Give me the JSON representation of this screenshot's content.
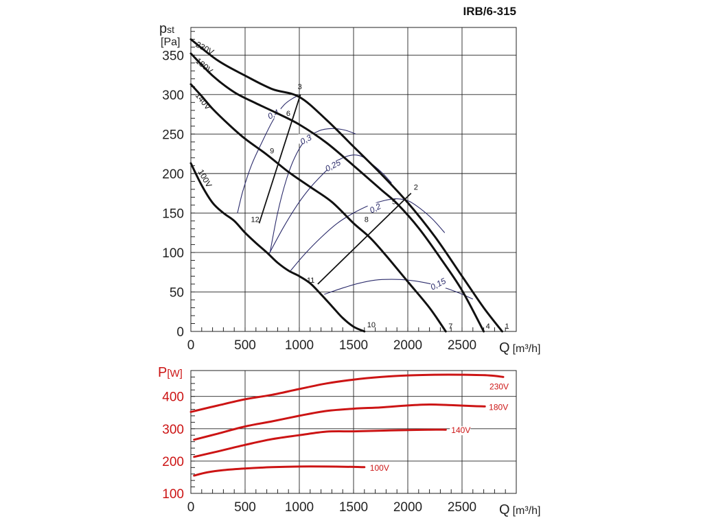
{
  "model": "IRB/6-315",
  "chart_data": [
    {
      "type": "line",
      "title": "IRB/6-315",
      "ylabel_main": "p",
      "ylabel_sub": "st",
      "yunit": "[Pa]",
      "xlabel": "Q",
      "xunit": "[m³/h]",
      "xlim": [
        0,
        3000
      ],
      "ylim": [
        0,
        385
      ],
      "xticks": [
        "0",
        "500",
        "1000",
        "1500",
        "2000",
        "2500"
      ],
      "yticks": [
        "0",
        "50",
        "100",
        "150",
        "200",
        "250",
        "300",
        "350"
      ],
      "x_tick_values": [
        0,
        500,
        1000,
        1500,
        2000,
        2500
      ],
      "y_tick_values": [
        0,
        50,
        100,
        150,
        200,
        250,
        300,
        350
      ],
      "grid": true,
      "series": [
        {
          "name": "230V",
          "points": [
            [
              0,
              370
            ],
            [
              250,
              343
            ],
            [
              500,
              324
            ],
            [
              750,
              307
            ],
            [
              1000,
              297
            ],
            [
              1250,
              268
            ],
            [
              1500,
              234
            ],
            [
              1750,
              200
            ],
            [
              2000,
              163
            ],
            [
              2250,
              120
            ],
            [
              2500,
              70
            ],
            [
              2700,
              30
            ],
            [
              2870,
              0
            ]
          ]
        },
        {
          "name": "180V",
          "points": [
            [
              0,
              352
            ],
            [
              200,
              324
            ],
            [
              400,
              303
            ],
            [
              600,
              289
            ],
            [
              800,
              276
            ],
            [
              1000,
              262
            ],
            [
              1250,
              239
            ],
            [
              1500,
              210
            ],
            [
              1750,
              180
            ],
            [
              1900,
              162
            ],
            [
              2100,
              131
            ],
            [
              2300,
              93
            ],
            [
              2500,
              52
            ],
            [
              2700,
              0
            ]
          ]
        },
        {
          "name": "140V",
          "points": [
            [
              0,
              313
            ],
            [
              100,
              298
            ],
            [
              200,
              282
            ],
            [
              350,
              262
            ],
            [
              500,
              244
            ],
            [
              700,
              224
            ],
            [
              900,
              202
            ],
            [
              1100,
              183
            ],
            [
              1300,
              164
            ],
            [
              1500,
              137
            ],
            [
              1650,
              119
            ],
            [
              1800,
              96
            ],
            [
              2000,
              63
            ],
            [
              2200,
              30
            ],
            [
              2350,
              0
            ]
          ]
        },
        {
          "name": "100V",
          "points": [
            [
              0,
              213
            ],
            [
              100,
              185
            ],
            [
              200,
              163
            ],
            [
              300,
              150
            ],
            [
              400,
              140
            ],
            [
              500,
              125
            ],
            [
              600,
              112
            ],
            [
              700,
              100
            ],
            [
              800,
              87
            ],
            [
              900,
              77
            ],
            [
              1000,
              70
            ],
            [
              1100,
              61
            ],
            [
              1200,
              47
            ],
            [
              1300,
              32
            ],
            [
              1400,
              17
            ],
            [
              1500,
              6
            ],
            [
              1600,
              0
            ]
          ]
        }
      ],
      "point_labels": [
        {
          "label": "1",
          "x": 2870,
          "y": 0
        },
        {
          "label": "2",
          "x": 2030,
          "y": 175
        },
        {
          "label": "3",
          "x": 1010,
          "y": 300
        },
        {
          "label": "4",
          "x": 2700,
          "y": 0
        },
        {
          "label": "5",
          "x": 1880,
          "y": 156
        },
        {
          "label": "6",
          "x": 980,
          "y": 271
        },
        {
          "label": "7",
          "x": 2350,
          "y": 0
        },
        {
          "label": "8",
          "x": 1650,
          "y": 130
        },
        {
          "label": "9",
          "x": 830,
          "y": 224
        },
        {
          "label": "10",
          "x": 1600,
          "y": 0
        },
        {
          "label": "11",
          "x": 1170,
          "y": 60
        },
        {
          "label": "12",
          "x": 630,
          "y": 137
        }
      ],
      "system_lines": [
        [
          [
            630,
            137
          ],
          [
            1010,
            300
          ]
        ],
        [
          [
            1170,
            60
          ],
          [
            2030,
            175
          ]
        ]
      ],
      "efficiency_curves": [
        {
          "name": "0,4",
          "label_at": [
            760,
            275
          ],
          "points": [
            [
              430,
              150
            ],
            [
              480,
              178
            ],
            [
              560,
              211
            ],
            [
              650,
              238
            ],
            [
              760,
              268
            ],
            [
              860,
              287
            ],
            [
              950,
              296
            ],
            [
              1000,
              299
            ]
          ]
        },
        {
          "name": "0,3",
          "label_at": [
            1060,
            243
          ],
          "points": [
            [
              730,
              100
            ],
            [
              800,
              150
            ],
            [
              880,
              192
            ],
            [
              960,
              221
            ],
            [
              1060,
              243
            ],
            [
              1180,
              254
            ],
            [
              1300,
              257
            ],
            [
              1420,
              255
            ],
            [
              1520,
              250
            ]
          ]
        },
        {
          "name": "0,25",
          "label_at": [
            1310,
            210
          ],
          "points": [
            [
              720,
              98
            ],
            [
              850,
              131
            ],
            [
              980,
              160
            ],
            [
              1100,
              182
            ],
            [
              1230,
              201
            ],
            [
              1350,
              216
            ],
            [
              1470,
              223
            ],
            [
              1570,
              222
            ],
            [
              1670,
              212
            ],
            [
              1770,
              200
            ],
            [
              1850,
              188
            ]
          ]
        },
        {
          "name": "0,2",
          "label_at": [
            1700,
            156
          ],
          "points": [
            [
              920,
              77
            ],
            [
              1050,
              98
            ],
            [
              1200,
              119
            ],
            [
              1350,
              137
            ],
            [
              1500,
              150
            ],
            [
              1650,
              160
            ],
            [
              1790,
              166
            ],
            [
              1900,
              168
            ],
            [
              2010,
              165
            ],
            [
              2120,
              155
            ],
            [
              2230,
              142
            ],
            [
              2340,
              125
            ]
          ]
        },
        {
          "name": "0,15",
          "label_at": [
            2280,
            60
          ],
          "points": [
            [
              1230,
              47
            ],
            [
              1400,
              55
            ],
            [
              1550,
              61
            ],
            [
              1700,
              65
            ],
            [
              1850,
              66
            ],
            [
              2000,
              65
            ],
            [
              2150,
              62
            ],
            [
              2300,
              57
            ],
            [
              2450,
              50
            ],
            [
              2600,
              41
            ]
          ]
        }
      ]
    },
    {
      "type": "line",
      "ylabel_main": "P",
      "yunit": "[W]",
      "xlabel": "Q",
      "xunit": "[m³/h]",
      "xlim": [
        0,
        3000
      ],
      "ylim": [
        100,
        480
      ],
      "xticks": [
        "0",
        "500",
        "1000",
        "1500",
        "2000",
        "2500"
      ],
      "yticks": [
        "100",
        "200",
        "300",
        "400"
      ],
      "x_tick_values": [
        0,
        500,
        1000,
        1500,
        2000,
        2500
      ],
      "y_tick_values": [
        100,
        200,
        300,
        400
      ],
      "grid": true,
      "series": [
        {
          "name": "230V",
          "points": [
            [
              0,
              352
            ],
            [
              250,
              372
            ],
            [
              500,
              391
            ],
            [
              750,
              405
            ],
            [
              1000,
              423
            ],
            [
              1250,
              440
            ],
            [
              1500,
              452
            ],
            [
              1750,
              460
            ],
            [
              2000,
              465
            ],
            [
              2250,
              467
            ],
            [
              2500,
              467
            ],
            [
              2750,
              465
            ],
            [
              2880,
              460
            ]
          ]
        },
        {
          "name": "180V",
          "points": [
            [
              30,
              266
            ],
            [
              250,
              285
            ],
            [
              500,
              307
            ],
            [
              750,
              323
            ],
            [
              1000,
              340
            ],
            [
              1250,
              355
            ],
            [
              1500,
              362
            ],
            [
              1750,
              366
            ],
            [
              2000,
              372
            ],
            [
              2200,
              375
            ],
            [
              2400,
              373
            ],
            [
              2600,
              370
            ],
            [
              2710,
              369
            ]
          ]
        },
        {
          "name": "140V",
          "points": [
            [
              30,
              213
            ],
            [
              250,
              230
            ],
            [
              500,
              250
            ],
            [
              750,
              268
            ],
            [
              1000,
              280
            ],
            [
              1250,
              291
            ],
            [
              1500,
              292
            ],
            [
              1750,
              294
            ],
            [
              2000,
              296
            ],
            [
              2200,
              297
            ],
            [
              2350,
              297
            ]
          ]
        },
        {
          "name": "100V",
          "points": [
            [
              30,
              155
            ],
            [
              150,
              165
            ],
            [
              300,
              172
            ],
            [
              500,
              177
            ],
            [
              750,
              181
            ],
            [
              1000,
              183
            ],
            [
              1250,
              183
            ],
            [
              1500,
              182
            ],
            [
              1600,
              181
            ]
          ]
        }
      ]
    }
  ],
  "colors": {
    "curve": "#111111",
    "power": "#cc1414",
    "efficiency": "#2a2a6a",
    "grid": "#222222"
  }
}
